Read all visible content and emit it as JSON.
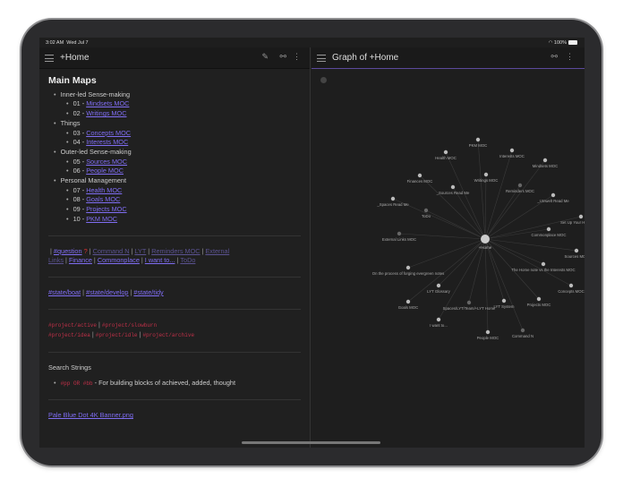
{
  "status": {
    "time": "3:02 AM",
    "date": "Wed Jul 7",
    "battery": "100%"
  },
  "left": {
    "title": "+Home",
    "heading": "Main Maps",
    "groups": [
      {
        "label": "Inner-led Sense-making",
        "items": [
          {
            "num": "01",
            "link": "Mindsets MOC"
          },
          {
            "num": "02",
            "link": "Writings MOC"
          }
        ]
      },
      {
        "label": "Things",
        "items": [
          {
            "num": "03",
            "link": "Concepts MOC"
          },
          {
            "num": "04",
            "link": "Interests MOC"
          }
        ]
      },
      {
        "label": "Outer-led Sense-making",
        "items": [
          {
            "num": "05",
            "link": "Sources MOC"
          },
          {
            "num": "06",
            "link": "People MOC"
          }
        ]
      },
      {
        "label": "Personal Management",
        "items": [
          {
            "num": "07",
            "link": "Health MOC"
          },
          {
            "num": "08",
            "link": "Goals MOC"
          },
          {
            "num": "09",
            "link": "Projects MOC"
          },
          {
            "num": "10",
            "link": "PKM MOC"
          }
        ]
      }
    ],
    "quick_links": [
      "#question",
      "Command N",
      "LYT",
      "Reminders MOC",
      "External Links",
      "Finance",
      "Commonplace",
      "I want to...",
      "ToDo"
    ],
    "question_mark": "?",
    "state_tags": [
      "#state/boat",
      "#state/develop",
      "#state/tidy"
    ],
    "project_tags": [
      "#project/active",
      "#project/slowburn",
      "#project/idea",
      "#project/idle",
      "#project/archive"
    ],
    "search_heading": "Search Strings",
    "search_code": "#pp OR #bb",
    "search_text": " - For building blocks of achieved, added, thought",
    "image_link": "Pale Blue Dot 4K Banner.png"
  },
  "right": {
    "title": "Graph of +Home",
    "graph": {
      "center": "+Home",
      "nodes": [
        {
          "label": "PKM MOC"
        },
        {
          "label": "Health MOC"
        },
        {
          "label": "Interests MOC"
        },
        {
          "label": "Mindsets MOC"
        },
        {
          "label": "Finances MOC"
        },
        {
          "label": "Writings MOC"
        },
        {
          "label": "_Sources Read Me"
        },
        {
          "label": "Reminders MOC",
          "unresolved": true
        },
        {
          "label": "_Spaces Read Me"
        },
        {
          "label": "_Umwelt Read Me"
        },
        {
          "label": "ToDo",
          "unresolved": true
        },
        {
          "label": "Set Up Your Home Note"
        },
        {
          "label": "Commonplace MOC"
        },
        {
          "label": "External Links MOC",
          "unresolved": true
        },
        {
          "label": "Sources MOC"
        },
        {
          "label": "The Home note vs the Interests MOC"
        },
        {
          "label": "On the process of forging evergreen notes"
        },
        {
          "label": "Concepts MOC"
        },
        {
          "label": "LYT Glossary"
        },
        {
          "label": "Goals MOC"
        },
        {
          "label": "Spaces/LYT/Team/+LYT Home",
          "unresolved": true
        },
        {
          "label": "LYT System"
        },
        {
          "label": "Projects MOC"
        },
        {
          "label": "I want to..."
        },
        {
          "label": "People MOC"
        },
        {
          "label": "Command N",
          "unresolved": true
        }
      ]
    }
  },
  "colors": {
    "accent": "#7f6df2",
    "tag": "#c03048",
    "background": "#1e1e1e"
  }
}
